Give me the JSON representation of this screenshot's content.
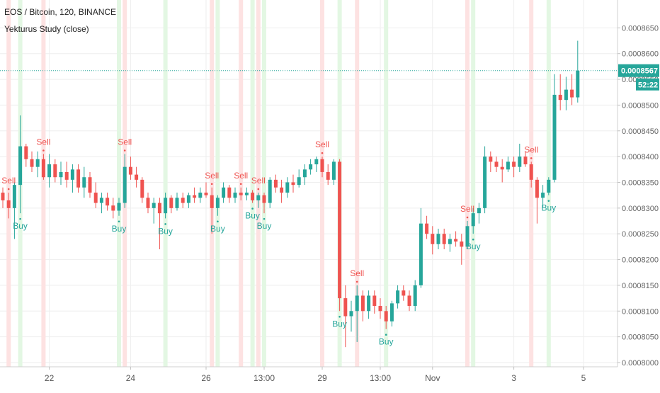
{
  "header": {
    "symbol_line": "EOS / Bitcoin, 120, BINANCE",
    "study_line": "Yekturus Study (close)"
  },
  "price_marker": {
    "last_price": "0.0008567",
    "countdown": "52:22",
    "color": "#26a69a"
  },
  "colors": {
    "up": "#26a69a",
    "down": "#ef5350",
    "sell_band": "#fde2e2",
    "buy_band": "#e3f7e3",
    "grid": "#eeeeee",
    "axis_text": "#666666"
  },
  "chart_data": {
    "type": "candlestick",
    "y_axis": {
      "range": [
        0.0008,
        0.00087
      ],
      "ticks": [
        0.0008,
        0.000805,
        0.00081,
        0.000815,
        0.00082,
        0.000825,
        0.00083,
        0.000835,
        0.00084,
        0.000845,
        0.00085,
        0.000855,
        0.00086,
        0.000865
      ],
      "tick_labels": [
        "0.0008000",
        "0.0008050",
        "0.0008100",
        "0.0008150",
        "0.0008200",
        "0.0008250",
        "0.0008300",
        "0.0008350",
        "0.0008400",
        "0.0008450",
        "0.0008500",
        "0.0008550",
        "0.0008600",
        "0.0008650"
      ]
    },
    "x_axis": {
      "ticks": [
        {
          "bar": 8,
          "label": "22"
        },
        {
          "bar": 22,
          "label": "24"
        },
        {
          "bar": 35,
          "label": "26"
        },
        {
          "bar": 45,
          "label": "13:00"
        },
        {
          "bar": 55,
          "label": "29"
        },
        {
          "bar": 65,
          "label": "13:00"
        },
        {
          "bar": 74,
          "label": "Nov"
        },
        {
          "bar": 88,
          "label": "3"
        },
        {
          "bar": 100,
          "label": "5"
        }
      ]
    },
    "grid": true,
    "candles": [
      {
        "o": 0.000833,
        "h": 0.000834,
        "l": 0.00083,
        "c": 0.0008315
      },
      {
        "o": 0.0008315,
        "h": 0.000833,
        "l": 0.000828,
        "c": 0.00083
      },
      {
        "o": 0.00083,
        "h": 0.000835,
        "l": 0.000824,
        "c": 0.0008345
      },
      {
        "o": 0.0008345,
        "h": 0.000848,
        "l": 0.000829,
        "c": 0.000842
      },
      {
        "o": 0.000842,
        "h": 0.0008425,
        "l": 0.000838,
        "c": 0.0008395
      },
      {
        "o": 0.0008395,
        "h": 0.000841,
        "l": 0.000837,
        "c": 0.000838
      },
      {
        "o": 0.000838,
        "h": 0.000841,
        "l": 0.000836,
        "c": 0.0008395
      },
      {
        "o": 0.0008395,
        "h": 0.0008405,
        "l": 0.0008355,
        "c": 0.000836
      },
      {
        "o": 0.000836,
        "h": 0.0008405,
        "l": 0.000834,
        "c": 0.0008385
      },
      {
        "o": 0.0008385,
        "h": 0.0008395,
        "l": 0.000835,
        "c": 0.000836
      },
      {
        "o": 0.000836,
        "h": 0.000839,
        "l": 0.0008345,
        "c": 0.000837
      },
      {
        "o": 0.000837,
        "h": 0.000839,
        "l": 0.000834,
        "c": 0.0008355
      },
      {
        "o": 0.0008355,
        "h": 0.0008385,
        "l": 0.000833,
        "c": 0.0008375
      },
      {
        "o": 0.0008375,
        "h": 0.0008385,
        "l": 0.000833,
        "c": 0.000834
      },
      {
        "o": 0.000834,
        "h": 0.000838,
        "l": 0.000832,
        "c": 0.000836
      },
      {
        "o": 0.000836,
        "h": 0.000837,
        "l": 0.000832,
        "c": 0.000833
      },
      {
        "o": 0.000833,
        "h": 0.000835,
        "l": 0.00083,
        "c": 0.000831
      },
      {
        "o": 0.000831,
        "h": 0.000833,
        "l": 0.000829,
        "c": 0.000832
      },
      {
        "o": 0.000832,
        "h": 0.000833,
        "l": 0.0008295,
        "c": 0.0008305
      },
      {
        "o": 0.0008305,
        "h": 0.000832,
        "l": 0.000828,
        "c": 0.0008295
      },
      {
        "o": 0.0008295,
        "h": 0.000832,
        "l": 0.0008285,
        "c": 0.000831
      },
      {
        "o": 0.000831,
        "h": 0.0008405,
        "l": 0.00083,
        "c": 0.000838
      },
      {
        "o": 0.000838,
        "h": 0.00084,
        "l": 0.0008355,
        "c": 0.0008365
      },
      {
        "o": 0.0008365,
        "h": 0.000838,
        "l": 0.000834,
        "c": 0.0008355
      },
      {
        "o": 0.0008355,
        "h": 0.000836,
        "l": 0.000831,
        "c": 0.000832
      },
      {
        "o": 0.000832,
        "h": 0.000833,
        "l": 0.000829,
        "c": 0.00083
      },
      {
        "o": 0.00083,
        "h": 0.000832,
        "l": 0.000827,
        "c": 0.000831
      },
      {
        "o": 0.000831,
        "h": 0.000832,
        "l": 0.000822,
        "c": 0.000829
      },
      {
        "o": 0.000829,
        "h": 0.000833,
        "l": 0.000828,
        "c": 0.000832
      },
      {
        "o": 0.000832,
        "h": 0.0008325,
        "l": 0.000829,
        "c": 0.00083
      },
      {
        "o": 0.00083,
        "h": 0.000833,
        "l": 0.0008295,
        "c": 0.000832
      },
      {
        "o": 0.000832,
        "h": 0.000833,
        "l": 0.00083,
        "c": 0.000831
      },
      {
        "o": 0.000831,
        "h": 0.000833,
        "l": 0.00083,
        "c": 0.0008325
      },
      {
        "o": 0.0008325,
        "h": 0.000834,
        "l": 0.000831,
        "c": 0.000832
      },
      {
        "o": 0.000832,
        "h": 0.000834,
        "l": 0.000831,
        "c": 0.000833
      },
      {
        "o": 0.000833,
        "h": 0.000835,
        "l": 0.000832,
        "c": 0.0008325
      },
      {
        "o": 0.0008325,
        "h": 0.000834,
        "l": 0.000825,
        "c": 0.00083
      },
      {
        "o": 0.00083,
        "h": 0.0008325,
        "l": 0.0008285,
        "c": 0.000832
      },
      {
        "o": 0.000832,
        "h": 0.000835,
        "l": 0.000831,
        "c": 0.000834
      },
      {
        "o": 0.000834,
        "h": 0.0008345,
        "l": 0.000831,
        "c": 0.000832
      },
      {
        "o": 0.000832,
        "h": 0.000834,
        "l": 0.000831,
        "c": 0.000833
      },
      {
        "o": 0.000833,
        "h": 0.000834,
        "l": 0.0008315,
        "c": 0.0008325
      },
      {
        "o": 0.0008325,
        "h": 0.000834,
        "l": 0.0008315,
        "c": 0.000833
      },
      {
        "o": 0.000833,
        "h": 0.0008335,
        "l": 0.000831,
        "c": 0.0008315
      },
      {
        "o": 0.0008315,
        "h": 0.000833,
        "l": 0.00083,
        "c": 0.0008325
      },
      {
        "o": 0.0008325,
        "h": 0.000833,
        "l": 0.000829,
        "c": 0.000831
      },
      {
        "o": 0.000831,
        "h": 0.000836,
        "l": 0.00083,
        "c": 0.0008355
      },
      {
        "o": 0.0008355,
        "h": 0.0008365,
        "l": 0.000833,
        "c": 0.000834
      },
      {
        "o": 0.000834,
        "h": 0.0008355,
        "l": 0.000831,
        "c": 0.000833
      },
      {
        "o": 0.000833,
        "h": 0.000836,
        "l": 0.000832,
        "c": 0.000835
      },
      {
        "o": 0.000835,
        "h": 0.0008365,
        "l": 0.000833,
        "c": 0.0008345
      },
      {
        "o": 0.0008345,
        "h": 0.0008375,
        "l": 0.000834,
        "c": 0.000836
      },
      {
        "o": 0.000836,
        "h": 0.0008385,
        "l": 0.0008345,
        "c": 0.0008375
      },
      {
        "o": 0.0008375,
        "h": 0.0008395,
        "l": 0.0008365,
        "c": 0.0008385
      },
      {
        "o": 0.0008385,
        "h": 0.00084,
        "l": 0.000837,
        "c": 0.0008395
      },
      {
        "o": 0.0008395,
        "h": 0.00084,
        "l": 0.000836,
        "c": 0.000837
      },
      {
        "o": 0.000837,
        "h": 0.0008385,
        "l": 0.0008345,
        "c": 0.0008355
      },
      {
        "o": 0.0008355,
        "h": 0.0008395,
        "l": 0.0008345,
        "c": 0.000839
      },
      {
        "o": 0.000839,
        "h": 0.0008395,
        "l": 0.00081,
        "c": 0.0008125
      },
      {
        "o": 0.0008125,
        "h": 0.000815,
        "l": 0.000803,
        "c": 0.000809
      },
      {
        "o": 0.000809,
        "h": 0.000812,
        "l": 0.000806,
        "c": 0.00081
      },
      {
        "o": 0.00081,
        "h": 0.000815,
        "l": 0.000804,
        "c": 0.000813
      },
      {
        "o": 0.000813,
        "h": 0.000814,
        "l": 0.000808,
        "c": 0.00081
      },
      {
        "o": 0.00081,
        "h": 0.000814,
        "l": 0.0008085,
        "c": 0.000813
      },
      {
        "o": 0.000813,
        "h": 0.000814,
        "l": 0.0008095,
        "c": 0.000811
      },
      {
        "o": 0.000811,
        "h": 0.0008125,
        "l": 0.0008085,
        "c": 0.00081
      },
      {
        "o": 0.00081,
        "h": 0.000811,
        "l": 0.0008065,
        "c": 0.000808
      },
      {
        "o": 0.000808,
        "h": 0.000812,
        "l": 0.000807,
        "c": 0.0008115
      },
      {
        "o": 0.0008115,
        "h": 0.000815,
        "l": 0.0008105,
        "c": 0.000814
      },
      {
        "o": 0.000814,
        "h": 0.000815,
        "l": 0.000812,
        "c": 0.000813
      },
      {
        "o": 0.000813,
        "h": 0.000814,
        "l": 0.00081,
        "c": 0.000811
      },
      {
        "o": 0.000811,
        "h": 0.000816,
        "l": 0.00081,
        "c": 0.000815
      },
      {
        "o": 0.000815,
        "h": 0.00083,
        "l": 0.0008145,
        "c": 0.000827
      },
      {
        "o": 0.000827,
        "h": 0.0008285,
        "l": 0.000824,
        "c": 0.000825
      },
      {
        "o": 0.000825,
        "h": 0.0008265,
        "l": 0.000821,
        "c": 0.000823
      },
      {
        "o": 0.000823,
        "h": 0.000826,
        "l": 0.000822,
        "c": 0.000825
      },
      {
        "o": 0.000825,
        "h": 0.000826,
        "l": 0.000822,
        "c": 0.000823
      },
      {
        "o": 0.000823,
        "h": 0.000825,
        "l": 0.0008215,
        "c": 0.000824
      },
      {
        "o": 0.000824,
        "h": 0.0008255,
        "l": 0.0008225,
        "c": 0.0008235
      },
      {
        "o": 0.0008235,
        "h": 0.000825,
        "l": 0.000819,
        "c": 0.0008225
      },
      {
        "o": 0.0008225,
        "h": 0.0008275,
        "l": 0.000822,
        "c": 0.0008265
      },
      {
        "o": 0.0008265,
        "h": 0.00083,
        "l": 0.000825,
        "c": 0.000829
      },
      {
        "o": 0.000829,
        "h": 0.000831,
        "l": 0.000827,
        "c": 0.00083
      },
      {
        "o": 0.00083,
        "h": 0.000842,
        "l": 0.000829,
        "c": 0.00084
      },
      {
        "o": 0.00084,
        "h": 0.000841,
        "l": 0.000837,
        "c": 0.000839
      },
      {
        "o": 0.000839,
        "h": 0.00084,
        "l": 0.000837,
        "c": 0.000838
      },
      {
        "o": 0.000838,
        "h": 0.0008395,
        "l": 0.000835,
        "c": 0.0008375
      },
      {
        "o": 0.0008375,
        "h": 0.00084,
        "l": 0.000837,
        "c": 0.000839
      },
      {
        "o": 0.000839,
        "h": 0.00084,
        "l": 0.000836,
        "c": 0.000838
      },
      {
        "o": 0.000838,
        "h": 0.0008425,
        "l": 0.000837,
        "c": 0.00084
      },
      {
        "o": 0.00084,
        "h": 0.000841,
        "l": 0.000838,
        "c": 0.0008385
      },
      {
        "o": 0.0008385,
        "h": 0.000839,
        "l": 0.000834,
        "c": 0.0008355
      },
      {
        "o": 0.0008355,
        "h": 0.000836,
        "l": 0.000827,
        "c": 0.000832
      },
      {
        "o": 0.000832,
        "h": 0.0008345,
        "l": 0.00083,
        "c": 0.000833
      },
      {
        "o": 0.000833,
        "h": 0.000836,
        "l": 0.0008325,
        "c": 0.0008355
      },
      {
        "o": 0.0008355,
        "h": 0.000856,
        "l": 0.000835,
        "c": 0.000852
      },
      {
        "o": 0.000852,
        "h": 0.000856,
        "l": 0.000849,
        "c": 0.000851
      },
      {
        "o": 0.000851,
        "h": 0.0008555,
        "l": 0.000849,
        "c": 0.000853
      },
      {
        "o": 0.000853,
        "h": 0.000856,
        "l": 0.00085,
        "c": 0.0008515
      },
      {
        "o": 0.0008515,
        "h": 0.0008625,
        "l": 0.0008505,
        "c": 0.0008567
      }
    ],
    "signals": [
      {
        "bar": 1,
        "type": "sell",
        "label": "Sell"
      },
      {
        "bar": 3,
        "type": "buy",
        "label": "Buy"
      },
      {
        "bar": 7,
        "type": "sell",
        "label": "Sell"
      },
      {
        "bar": 21,
        "type": "sell",
        "label": "Sell"
      },
      {
        "bar": 20,
        "type": "buy",
        "label": "Buy"
      },
      {
        "bar": 28,
        "type": "buy",
        "label": "Buy"
      },
      {
        "bar": 36,
        "type": "sell",
        "label": "Sell"
      },
      {
        "bar": 37,
        "type": "buy",
        "label": "Buy"
      },
      {
        "bar": 41,
        "type": "sell",
        "label": "Sell"
      },
      {
        "bar": 43,
        "type": "buy",
        "label": "Buy"
      },
      {
        "bar": 44,
        "type": "sell",
        "label": "Sell"
      },
      {
        "bar": 45,
        "type": "buy",
        "label": "Buy"
      },
      {
        "bar": 55,
        "type": "sell",
        "label": "Sell"
      },
      {
        "bar": 58,
        "type": "buy",
        "label": "Buy"
      },
      {
        "bar": 61,
        "type": "sell",
        "label": "Sell"
      },
      {
        "bar": 66,
        "type": "buy",
        "label": "Buy"
      },
      {
        "bar": 80,
        "type": "sell",
        "label": "Sell"
      },
      {
        "bar": 81,
        "type": "buy",
        "label": "Buy"
      },
      {
        "bar": 91,
        "type": "sell",
        "label": "Sell"
      },
      {
        "bar": 94,
        "type": "buy",
        "label": "Buy"
      }
    ],
    "bands": [
      {
        "bar": 1,
        "type": "sell"
      },
      {
        "bar": 3,
        "type": "buy"
      },
      {
        "bar": 7,
        "type": "sell"
      },
      {
        "bar": 20,
        "type": "buy"
      },
      {
        "bar": 21,
        "type": "sell"
      },
      {
        "bar": 28,
        "type": "buy"
      },
      {
        "bar": 36,
        "type": "sell"
      },
      {
        "bar": 37,
        "type": "buy"
      },
      {
        "bar": 41,
        "type": "sell"
      },
      {
        "bar": 43,
        "type": "buy"
      },
      {
        "bar": 44,
        "type": "sell"
      },
      {
        "bar": 45,
        "type": "buy"
      },
      {
        "bar": 55,
        "type": "sell"
      },
      {
        "bar": 58,
        "type": "buy"
      },
      {
        "bar": 61,
        "type": "sell"
      },
      {
        "bar": 66,
        "type": "buy"
      },
      {
        "bar": 80,
        "type": "sell"
      },
      {
        "bar": 81,
        "type": "buy"
      },
      {
        "bar": 91,
        "type": "sell"
      },
      {
        "bar": 94,
        "type": "buy"
      }
    ]
  }
}
